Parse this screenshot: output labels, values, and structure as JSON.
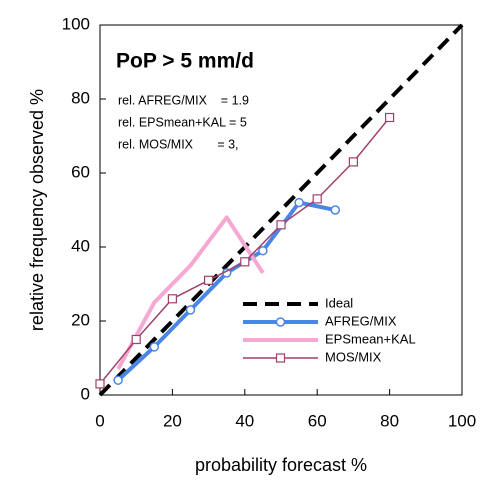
{
  "chart_data": {
    "type": "line",
    "annotations": [
      "PoP > 5 mm/d",
      "rel. AFREG/MIX    = 1.9",
      "rel. EPSmean+KAL = 5",
      "rel. MOS/MIX       = 3,"
    ],
    "xlabel": "probability forecast %",
    "ylabel": "relative frequency observed %",
    "xlim": [
      0,
      100
    ],
    "ylim": [
      0,
      100
    ],
    "xticks": [
      0,
      20,
      40,
      60,
      80,
      100
    ],
    "yticks": [
      0,
      20,
      40,
      60,
      80,
      100
    ],
    "grid": false,
    "legend": "lower right",
    "series": [
      {
        "name": "Ideal",
        "color": "#000000",
        "x": [
          0,
          100
        ],
        "values": [
          0,
          100
        ]
      },
      {
        "name": "AFREG/MIX",
        "color": "#4a86e8",
        "x": [
          5,
          15,
          25,
          35,
          45,
          55,
          65
        ],
        "values": [
          4,
          13,
          23,
          33,
          39,
          52,
          50
        ]
      },
      {
        "name": "EPSmean+KAL",
        "color": "#f7a8d2",
        "x": [
          5,
          15,
          25,
          35,
          45
        ],
        "values": [
          7,
          25,
          35,
          48,
          33
        ]
      },
      {
        "name": "MOS/MIX",
        "color": "#a0406a",
        "x": [
          0,
          10,
          20,
          30,
          40,
          50,
          60,
          70,
          80
        ],
        "values": [
          3,
          15,
          26,
          31,
          36,
          46,
          53,
          63,
          75
        ]
      }
    ]
  }
}
